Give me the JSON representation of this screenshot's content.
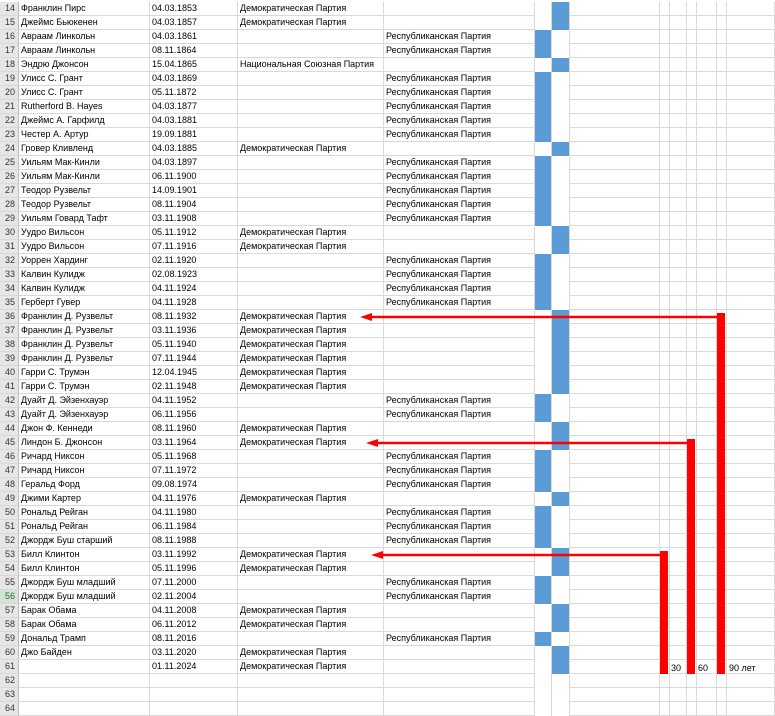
{
  "rows": [
    {
      "n": "14",
      "name": "Франклин Пирс",
      "date": "04.03.1853",
      "party_d": "Демократическая Партия",
      "party_r": "",
      "color": "D"
    },
    {
      "n": "15",
      "name": "Джеймс Бьюкенен",
      "date": "04.03.1857",
      "party_d": "Демократическая Партия",
      "party_r": "",
      "color": "D"
    },
    {
      "n": "16",
      "name": "Авраам Линкольн",
      "date": "04.03.1861",
      "party_d": "",
      "party_r": "Республиканская Партия",
      "color": "R"
    },
    {
      "n": "17",
      "name": "Авраам Линкольн",
      "date": "08.11.1864",
      "party_d": "",
      "party_r": "Республиканская Партия",
      "color": "R"
    },
    {
      "n": "18",
      "name": "Эндрю Джонсон",
      "date": "15.04.1865",
      "party_d": "Национальная Союзная Партия",
      "party_r": "",
      "color": "D"
    },
    {
      "n": "19",
      "name": "Улисс С. Грант",
      "date": "04.03.1869",
      "party_d": "",
      "party_r": "Республиканская Партия",
      "color": "R"
    },
    {
      "n": "20",
      "name": "Улисс С. Грант",
      "date": " 05.11.1872",
      "party_d": "",
      "party_r": "Республиканская Партия",
      "color": "R"
    },
    {
      "n": "21",
      "name": "Rutherford B. Hayes",
      "date": "04.03.1877",
      "party_d": "",
      "party_r": "Республиканская Партия",
      "color": "R"
    },
    {
      "n": "22",
      "name": "Джеймс А. Гарфилд",
      "date": "04.03.1881",
      "party_d": "",
      "party_r": "Республиканская Партия",
      "color": "R"
    },
    {
      "n": "23",
      "name": "Честер А. Артур",
      "date": "19.09.1881",
      "party_d": "",
      "party_r": "Республиканская Партия",
      "color": "R"
    },
    {
      "n": "24",
      "name": "Гровер Кливленд",
      "date": "04.03.1885",
      "party_d": "Демократическая Партия",
      "party_r": "",
      "color": "D"
    },
    {
      "n": "25",
      "name": "Уильям Мак-Кинли",
      "date": "04.03.1897",
      "party_d": "",
      "party_r": "Республиканская Партия",
      "color": "R"
    },
    {
      "n": "26",
      "name": "Уильям Мак-Кинли",
      "date": "06.11.1900",
      "party_d": "",
      "party_r": "Республиканская Партия",
      "color": "R"
    },
    {
      "n": "27",
      "name": "Теодор Рузвельт",
      "date": "14.09.1901",
      "party_d": "",
      "party_r": "Республиканская Партия",
      "color": "R"
    },
    {
      "n": "28",
      "name": "Теодор Рузвельт",
      "date": " 08.11.1904",
      "party_d": "",
      "party_r": "Республиканская Партия",
      "color": "R"
    },
    {
      "n": "29",
      "name": "Уильям Говард Тафт",
      "date": "03.11.1908",
      "party_d": "",
      "party_r": "Республиканская Партия",
      "color": "R"
    },
    {
      "n": "30",
      "name": "Уудро Вильсон",
      "date": "05.11.1912",
      "party_d": "Демократическая Партия",
      "party_r": "",
      "color": "D"
    },
    {
      "n": "31",
      "name": "Уудро Вильсон",
      "date": "07.11.1916",
      "party_d": "Демократическая Партия",
      "party_r": "",
      "color": "D"
    },
    {
      "n": "32",
      "name": "Уоррен Хардинг",
      "date": "02.11.1920",
      "party_d": "",
      "party_r": "Республиканская Партия",
      "color": "R"
    },
    {
      "n": "33",
      "name": "Калвин Кулидж",
      "date": "02.08.1923",
      "party_d": "",
      "party_r": "Республиканская Партия",
      "color": "R"
    },
    {
      "n": "34",
      "name": "Калвин Кулидж",
      "date": " 04.11.1924",
      "party_d": "",
      "party_r": "Республиканская Партия",
      "color": "R"
    },
    {
      "n": "35",
      "name": "Герберт Гувер",
      "date": "04.11.1928",
      "party_d": "",
      "party_r": "Республиканская Партия",
      "color": "R"
    },
    {
      "n": "36",
      "name": "Франклин Д. Рузвельт",
      "date": "08.11.1932",
      "party_d": "Демократическая Партия",
      "party_r": "",
      "color": "D"
    },
    {
      "n": "37",
      "name": "Франклин Д. Рузвельт",
      "date": "03.11.1936",
      "party_d": "Демократическая Партия",
      "party_r": "",
      "color": "D"
    },
    {
      "n": "38",
      "name": "Франклин Д. Рузвельт",
      "date": "05.11.1940",
      "party_d": "Демократическая Партия",
      "party_r": "",
      "color": "D"
    },
    {
      "n": "39",
      "name": "Франклин Д. Рузвельт",
      "date": "07.11.1944",
      "party_d": "Демократическая Партия",
      "party_r": "",
      "color": "D"
    },
    {
      "n": "40",
      "name": "Гарри С. Трумэн",
      "date": "12.04.1945",
      "party_d": "Демократическая Партия",
      "party_r": "",
      "color": "D"
    },
    {
      "n": "41",
      "name": "Гарри С. Трумэн",
      "date": "02.11.1948",
      "party_d": "Демократическая Партия",
      "party_r": "",
      "color": "D"
    },
    {
      "n": "42",
      "name": "Дуайт Д. Эйзенхауэр",
      "date": "04.11.1952",
      "party_d": "",
      "party_r": "Республиканская Партия",
      "color": "R"
    },
    {
      "n": "43",
      "name": "Дуайт Д. Эйзенхауэр",
      "date": " 06.11.1956",
      "party_d": "",
      "party_r": "Республиканская Партия",
      "color": "R"
    },
    {
      "n": "44",
      "name": "Джон Ф. Кеннеди",
      "date": "08.11.1960",
      "party_d": "Демократическая Партия",
      "party_r": "",
      "color": "D"
    },
    {
      "n": "45",
      "name": "Линдон Б. Джонсон",
      "date": "03.11.1964",
      "party_d": "Демократическая Партия",
      "party_r": "",
      "color": "D"
    },
    {
      "n": "46",
      "name": "Ричард Никсон",
      "date": "05.11.1968",
      "party_d": "",
      "party_r": "Республиканская Партия",
      "color": "R"
    },
    {
      "n": "47",
      "name": "Ричард Никсон",
      "date": "07.11.1972",
      "party_d": "",
      "party_r": "Республиканская Партия",
      "color": "R"
    },
    {
      "n": "48",
      "name": "Геральд Форд",
      "date": "09.08.1974",
      "party_d": "",
      "party_r": "Республиканская Партия",
      "color": "R"
    },
    {
      "n": "49",
      "name": "Джими Картер",
      "date": "04.11.1976",
      "party_d": "Демократическая Партия",
      "party_r": "",
      "color": "D"
    },
    {
      "n": "50",
      "name": "Рональд Рейган",
      "date": "04.11.1980",
      "party_d": "",
      "party_r": "Республиканская Партия",
      "color": "R"
    },
    {
      "n": "51",
      "name": "Рональд Рейган",
      "date": "06.11.1984",
      "party_d": "",
      "party_r": "Республиканская Партия",
      "color": "R"
    },
    {
      "n": "52",
      "name": "Джордж Буш старший",
      "date": "08.11.1988",
      "party_d": "",
      "party_r": "Республиканская Партия",
      "color": "R"
    },
    {
      "n": "53",
      "name": "Билл Клинтон",
      "date": "03.11.1992",
      "party_d": "Демократическая Партия",
      "party_r": "",
      "color": "D"
    },
    {
      "n": "54",
      "name": "Билл Клинтон",
      "date": "05.11.1996",
      "party_d": "Демократическая Партия",
      "party_r": "",
      "color": "D"
    },
    {
      "n": "55",
      "name": "Джордж Буш младший",
      "date": "07.11.2000",
      "party_d": "",
      "party_r": "Республиканская Партия",
      "color": "R"
    },
    {
      "n": "56",
      "name": "Джордж Буш младший",
      "date": "02.11.2004",
      "party_d": "",
      "party_r": "Республиканская Партия",
      "color": "R"
    },
    {
      "n": "57",
      "name": "Барак Обама",
      "date": "04.11.2008",
      "party_d": "Демократическая Партия",
      "party_r": "",
      "color": "D"
    },
    {
      "n": "58",
      "name": "Барак Обама",
      "date": "06.11.2012",
      "party_d": "Демократическая Партия",
      "party_r": "",
      "color": "D"
    },
    {
      "n": "59",
      "name": "Дональд Трамп",
      "date": "08.11.2016",
      "party_d": "",
      "party_r": "Республиканская Партия",
      "color": "R"
    },
    {
      "n": "60",
      "name": "Джо Байден",
      "date": "03.11.2020",
      "party_d": "Демократическая Партия",
      "party_r": "",
      "color": "D"
    },
    {
      "n": "61",
      "name": "",
      "date": "01.11.2024",
      "party_d": "Демократическая Партия",
      "party_r": "",
      "color": "D"
    },
    {
      "n": "62",
      "name": "",
      "date": "",
      "party_d": "",
      "party_r": "",
      "color": ""
    },
    {
      "n": "63",
      "name": "",
      "date": "",
      "party_d": "",
      "party_r": "",
      "color": ""
    },
    {
      "n": "64",
      "name": "",
      "date": "",
      "party_d": "",
      "party_r": "",
      "color": ""
    }
  ],
  "active_row": "56",
  "annotations": {
    "arrow_color": "#ff0000",
    "fill_color": "#5b9bd5",
    "brackets": [
      {
        "label": "30",
        "from_row": "53",
        "to_row": "61"
      },
      {
        "label": "60",
        "from_row": "45",
        "to_row": "61"
      },
      {
        "label": "90 лет",
        "from_row": "36",
        "to_row": "61"
      }
    ]
  }
}
